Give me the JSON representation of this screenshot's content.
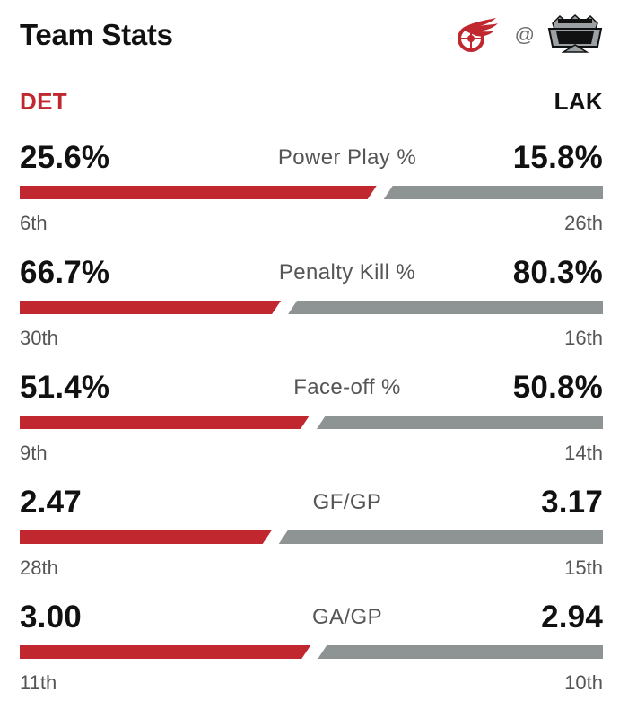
{
  "header": {
    "title": "Team Stats",
    "at_symbol": "@"
  },
  "teams": {
    "away": {
      "abbr": "DET",
      "logo": "red-wings-logo-icon",
      "color": "#C0272F"
    },
    "home": {
      "abbr": "LAK",
      "logo": "kings-logo-icon",
      "color": "#8E9394"
    }
  },
  "stats": [
    {
      "label": "Power Play %",
      "away_value": "25.6%",
      "home_value": "15.8%",
      "away_rank": "6th",
      "home_rank": "26th",
      "away_share": 0.618
    },
    {
      "label": "Penalty Kill %",
      "away_value": "66.7%",
      "home_value": "80.3%",
      "away_rank": "30th",
      "home_rank": "16th",
      "away_share": 0.454
    },
    {
      "label": "Face-off %",
      "away_value": "51.4%",
      "home_value": "50.8%",
      "away_rank": "9th",
      "home_rank": "14th",
      "away_share": 0.503
    },
    {
      "label": "GF/GP",
      "away_value": "2.47",
      "home_value": "3.17",
      "away_rank": "28th",
      "home_rank": "15th",
      "away_share": 0.438
    },
    {
      "label": "GA/GP",
      "away_value": "3.00",
      "home_value": "2.94",
      "away_rank": "11th",
      "home_rank": "10th",
      "away_share": 0.505
    }
  ]
}
